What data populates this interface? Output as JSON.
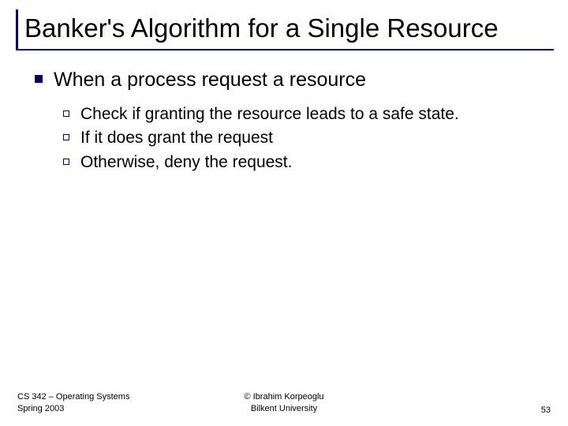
{
  "colors": {
    "border": "#000066",
    "text": "#000000",
    "background": "#ffffff"
  },
  "title": "Banker's Algorithm for a Single Resource",
  "main_bullet": "When a process request a resource",
  "sub_bullets": [
    "Check if granting the resource leads to a safe state.",
    "If it does grant the request",
    "Otherwise, deny the request."
  ],
  "footer": {
    "left_line1": "CS 342 – Operating Systems",
    "left_line2": "Spring 2003",
    "center_line1": "© Ibrahim Korpeoglu",
    "center_line2": "Bilkent University",
    "page_number": "53"
  }
}
